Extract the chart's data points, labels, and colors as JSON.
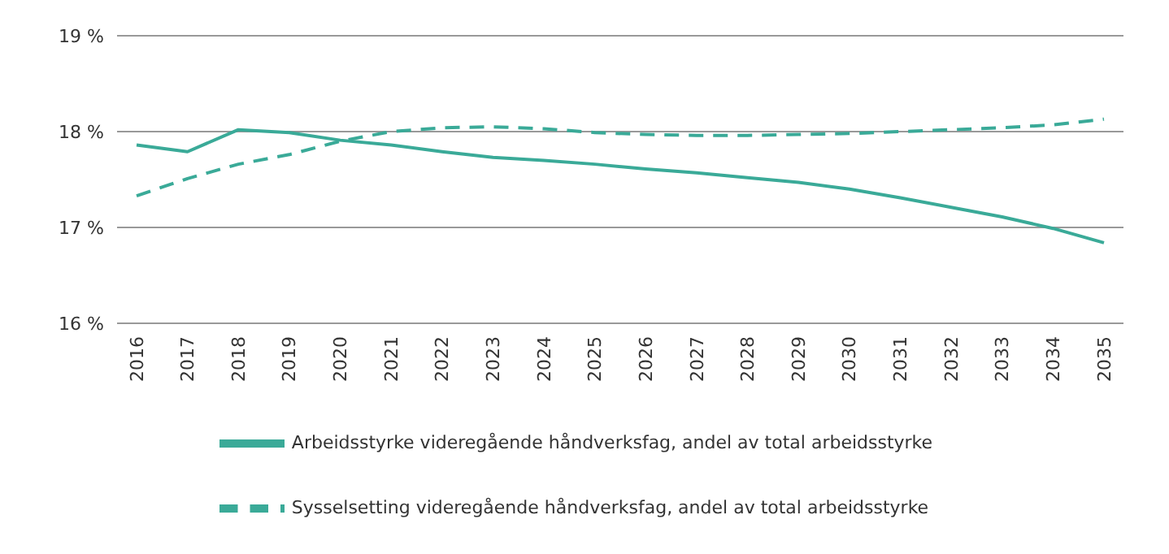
{
  "chart_data": {
    "type": "line",
    "categories": [
      "2016",
      "2017",
      "2018",
      "2019",
      "2020",
      "2021",
      "2022",
      "2023",
      "2024",
      "2025",
      "2026",
      "2027",
      "2028",
      "2029",
      "2030",
      "2031",
      "2032",
      "2033",
      "2034",
      "2035"
    ],
    "series": [
      {
        "name": "Arbeidsstyrke videregående håndverksfag, andel av total arbeidsstyrke",
        "color": "#3aaa98",
        "line_style": "solid",
        "values": [
          17.86,
          17.79,
          18.02,
          17.99,
          17.91,
          17.86,
          17.79,
          17.73,
          17.7,
          17.66,
          17.61,
          17.57,
          17.52,
          17.47,
          17.4,
          17.31,
          17.21,
          17.11,
          16.99,
          16.84
        ]
      },
      {
        "name": "Sysselsetting videregående håndverksfag, andel av total arbeidsstyrke",
        "color": "#3aaa98",
        "line_style": "dashed",
        "values": [
          17.33,
          17.51,
          17.66,
          17.76,
          17.9,
          18.0,
          18.04,
          18.05,
          18.03,
          17.99,
          17.97,
          17.96,
          17.96,
          17.97,
          17.98,
          18.0,
          18.02,
          18.04,
          18.07,
          18.13
        ]
      }
    ],
    "ylim": [
      16,
      19
    ],
    "yticks": [
      {
        "value": 16,
        "label": "16 %"
      },
      {
        "value": 17,
        "label": "17 %"
      },
      {
        "value": 18,
        "label": "18 %"
      },
      {
        "value": 19,
        "label": "19 %"
      }
    ],
    "grid": "y",
    "legend": "bottom",
    "marker": "none"
  }
}
